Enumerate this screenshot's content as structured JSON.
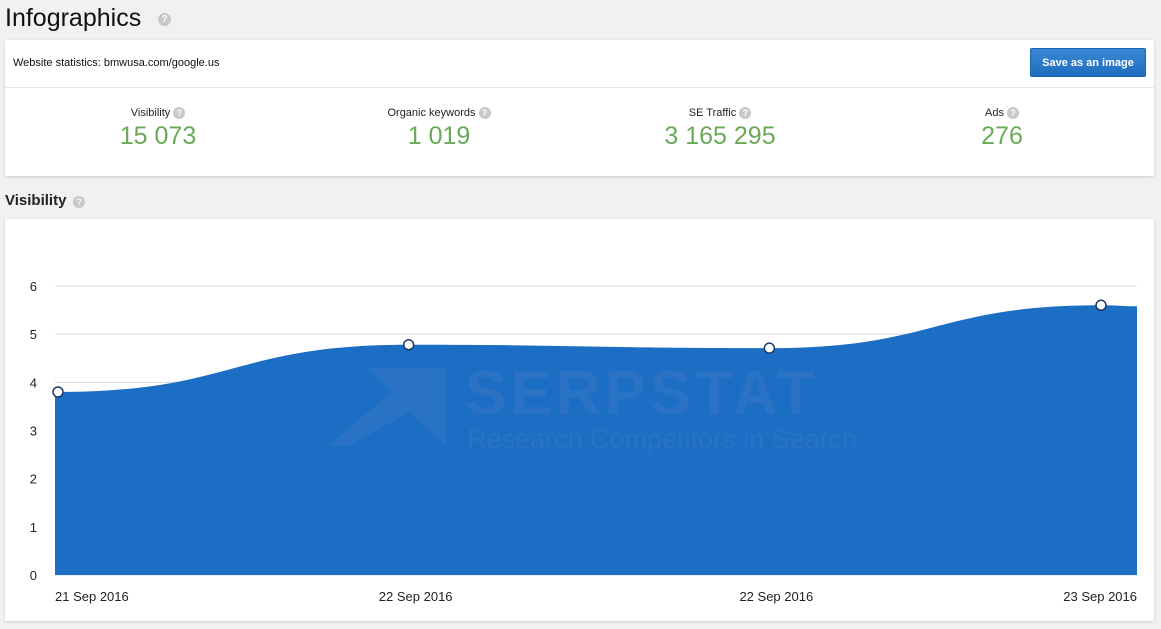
{
  "page": {
    "title": "Infographics",
    "help_glyph": "?"
  },
  "stats": {
    "site_label": "Website statistics: bmwusa.com/google.us",
    "save_button": "Save as an image",
    "metrics": [
      {
        "label": "Visibility",
        "value": "15 073"
      },
      {
        "label": "Organic keywords",
        "value": "1 019"
      },
      {
        "label": "SE Traffic",
        "value": "3 165 295"
      },
      {
        "label": "Ads",
        "value": "276"
      }
    ]
  },
  "visibility_section": {
    "title": "Visibility"
  },
  "watermark": {
    "brand": "SERPSTAT",
    "tagline": "Research Competitors in Search"
  },
  "colors": {
    "area_fill": "#1c6dc4",
    "metric_value": "#6aaa57",
    "button": "#2a7ccc"
  },
  "chart_data": {
    "type": "area",
    "title": "",
    "xlabel": "",
    "ylabel": "",
    "x": [
      "21 Sep 2016",
      "22 Sep 2016",
      "22 Sep 2016",
      "23 Sep 2016"
    ],
    "series": [
      {
        "values": [
          3.8,
          4.78,
          4.71,
          5.6
        ]
      }
    ],
    "ylim": [
      0,
      6
    ],
    "yticks": [
      0,
      1,
      2,
      3,
      4,
      5,
      6
    ],
    "grid": true,
    "legend": "none"
  }
}
